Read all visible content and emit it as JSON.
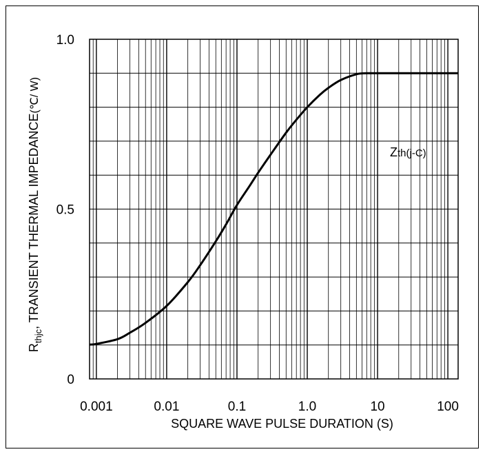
{
  "chart_data": {
    "type": "line",
    "title": "",
    "xscale": "log",
    "xlim": [
      0.0008,
      140
    ],
    "ylim": [
      0,
      1.0
    ],
    "grid": true,
    "xlabel": "SQUARE WAVE PULSE DURATION (S)",
    "ylabel": {
      "prefix": "R",
      "subscript": "thjc",
      "rest": ",  TRANSIENT THERMAL IMPEDANCE",
      "unit": "(℃/ W)"
    },
    "x_ticks": [
      {
        "value": 0.001,
        "label": "0.001"
      },
      {
        "value": 0.01,
        "label": "0.01"
      },
      {
        "value": 0.1,
        "label": "0.1"
      },
      {
        "value": 1,
        "label": "1.0"
      },
      {
        "value": 10,
        "label": "10"
      },
      {
        "value": 100,
        "label": "100"
      }
    ],
    "y_ticks": [
      {
        "value": 0,
        "label": "0"
      },
      {
        "value": 0.5,
        "label": "0.5"
      },
      {
        "value": 1.0,
        "label": "1.0"
      }
    ],
    "series": [
      {
        "name": {
          "main": "Z",
          "sub": "th(j-C)"
        },
        "color": "#000000",
        "x": [
          0.0008,
          0.001,
          0.002,
          0.003,
          0.005,
          0.01,
          0.02,
          0.03,
          0.05,
          0.07,
          0.1,
          0.15,
          0.2,
          0.3,
          0.5,
          0.7,
          1.0,
          1.5,
          2,
          3,
          5,
          7,
          10,
          20,
          50,
          100,
          140
        ],
        "y": [
          0.101,
          0.103,
          0.117,
          0.136,
          0.165,
          0.215,
          0.285,
          0.335,
          0.405,
          0.455,
          0.512,
          0.567,
          0.607,
          0.66,
          0.725,
          0.763,
          0.8,
          0.836,
          0.857,
          0.88,
          0.897,
          0.9,
          0.9,
          0.9,
          0.9,
          0.9,
          0.9
        ]
      }
    ]
  }
}
